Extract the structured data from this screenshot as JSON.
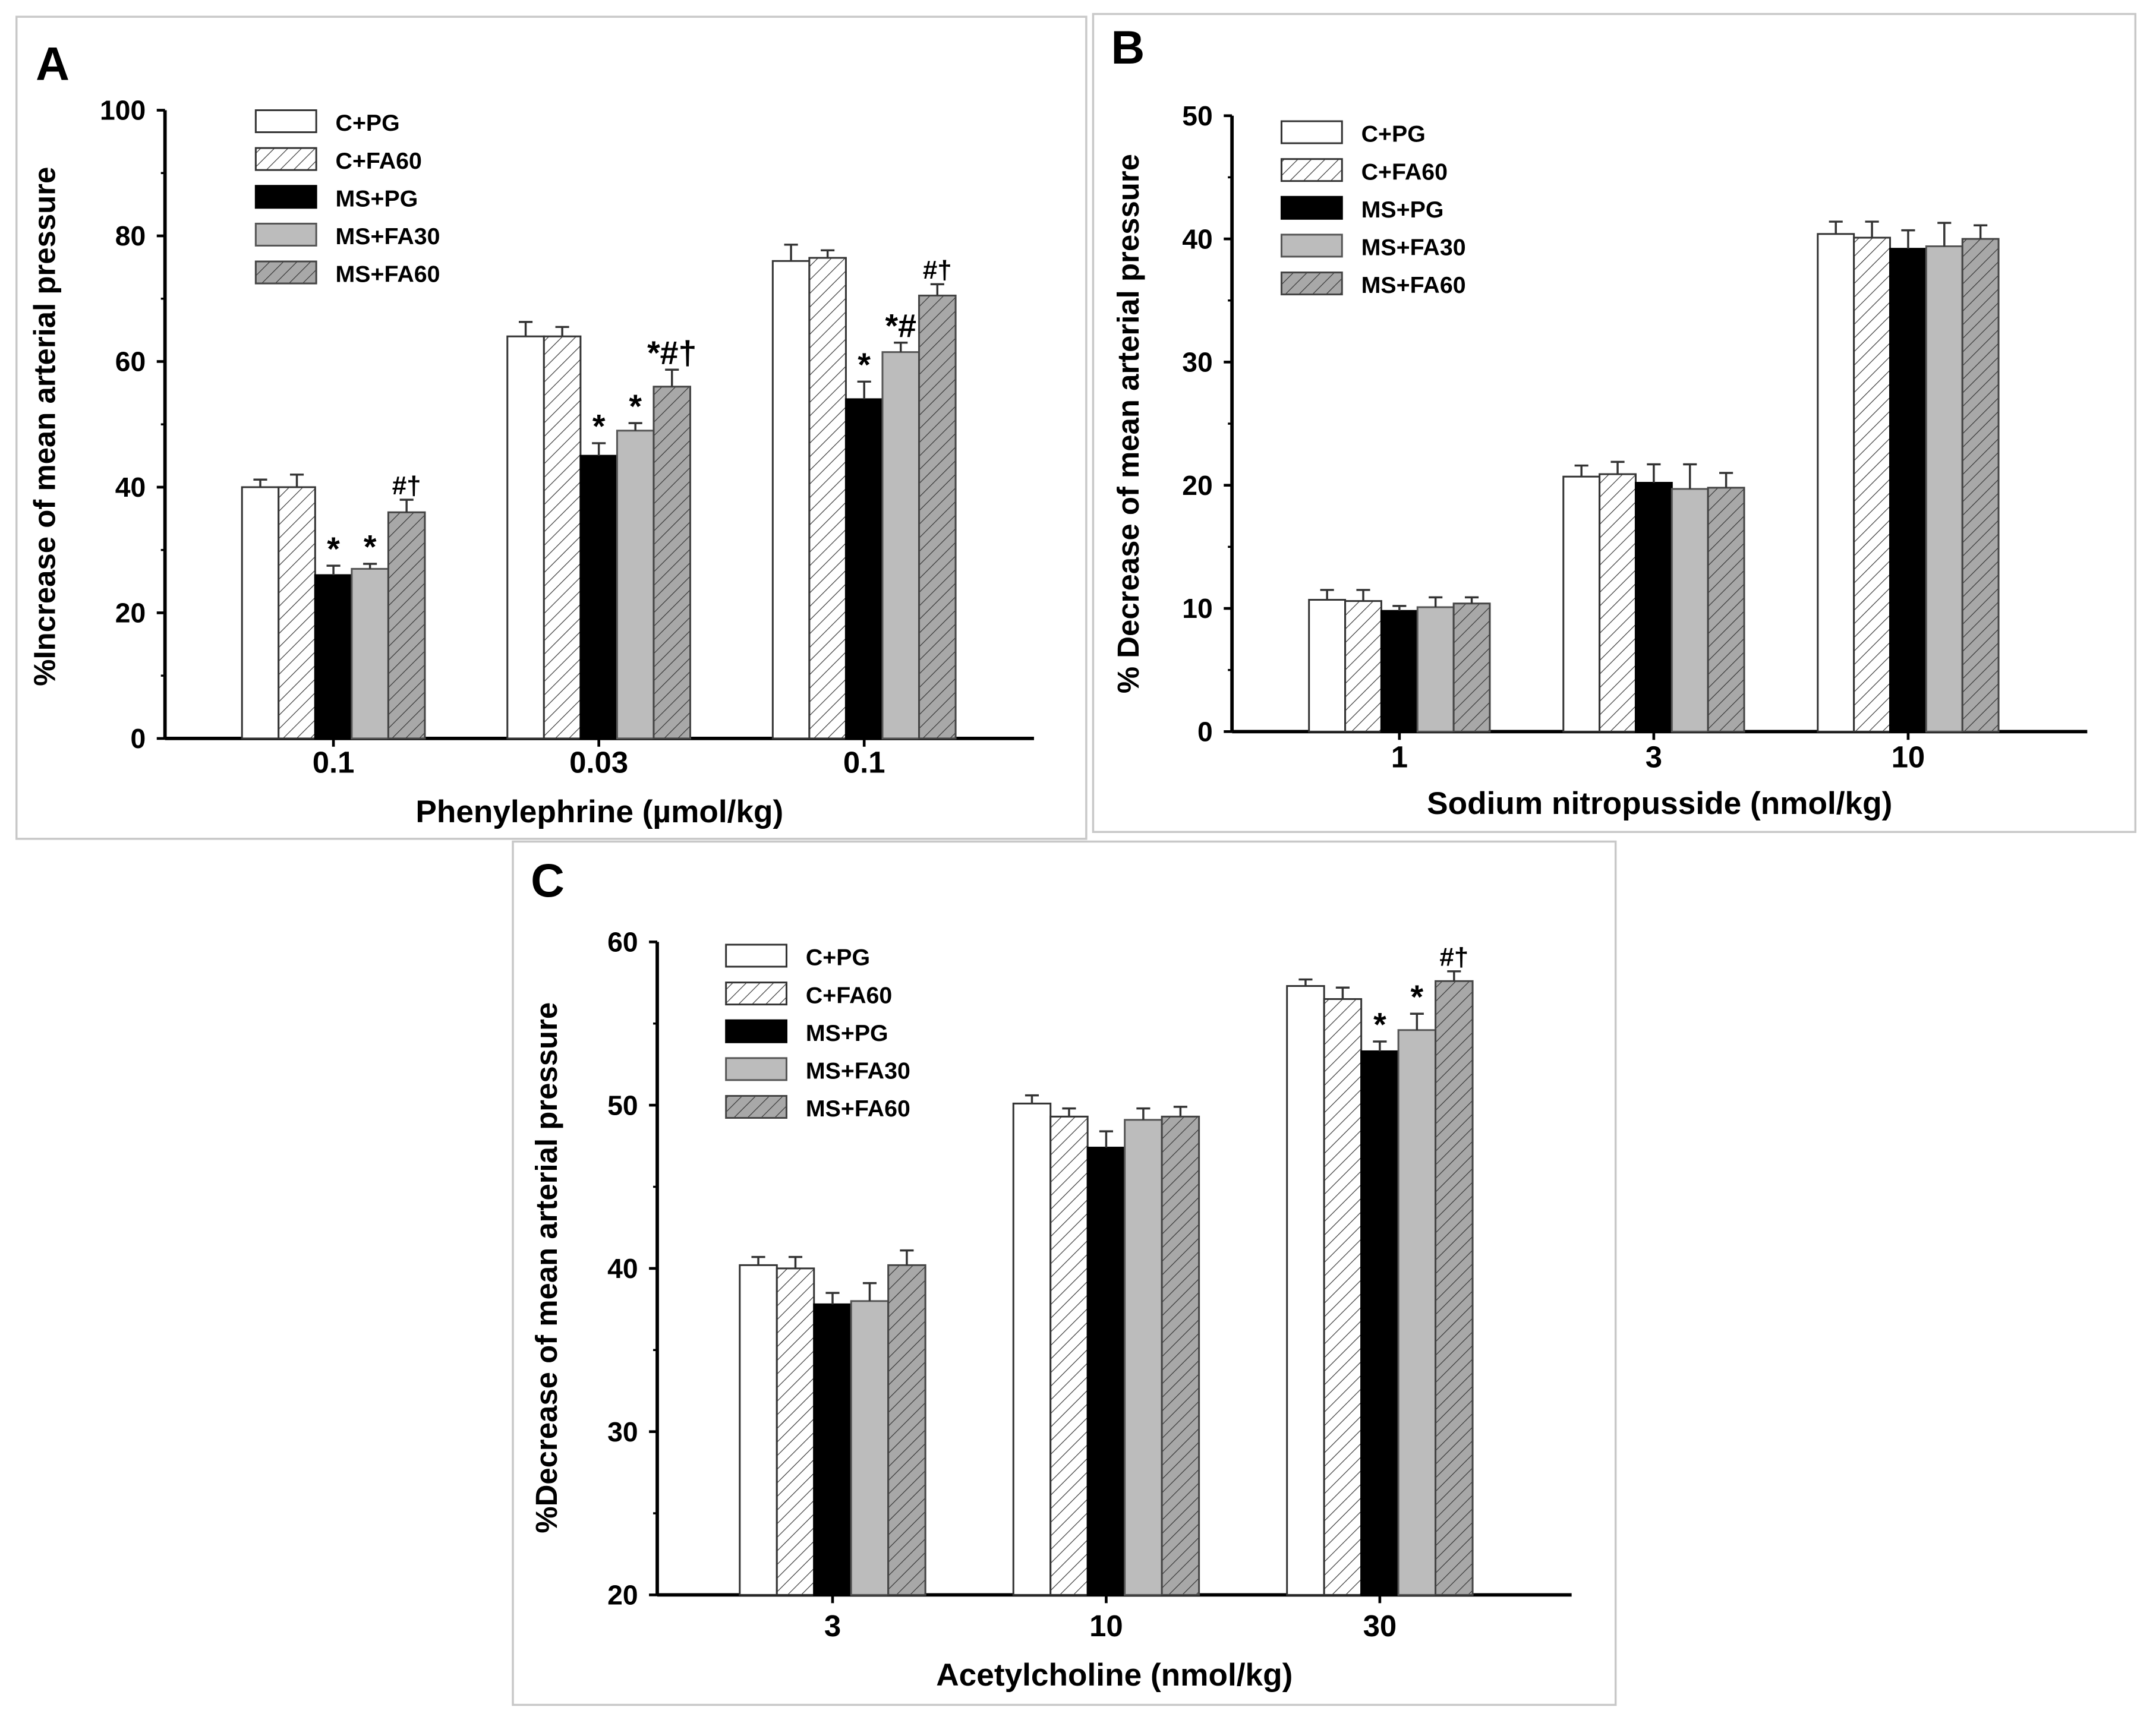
{
  "legend": [
    "C+PG",
    "C+FA60",
    "MS+PG",
    "MS+FA30",
    "MS+FA60"
  ],
  "colors": {
    "white": "#ffffff",
    "black": "#000000",
    "gray": "#bcbcbc",
    "gray_hatch": "#a8a8a8"
  },
  "chart_data": [
    {
      "type": "bar",
      "panel": "A",
      "title": "",
      "xlabel": "Phenylephrine (µmol/kg)",
      "ylabel": "%Increase of mean arterial pressure",
      "ylim": [
        0,
        100
      ],
      "yticks": [
        "0",
        "20",
        "40",
        "60",
        "80",
        "100"
      ],
      "categories": [
        "0.1",
        "0.03",
        "0.1"
      ],
      "legend_position": "top-left",
      "series": [
        {
          "name": "C+PG",
          "values": [
            40,
            64,
            76
          ],
          "errors": [
            1.2,
            2.3,
            2.6
          ],
          "annotations": [
            "",
            "",
            ""
          ]
        },
        {
          "name": "C+FA60",
          "values": [
            40,
            64,
            76.5
          ],
          "errors": [
            2,
            1.5,
            1.2
          ],
          "annotations": [
            "",
            "",
            ""
          ]
        },
        {
          "name": "MS+PG",
          "values": [
            26,
            45,
            54
          ],
          "errors": [
            1.5,
            2,
            2.8
          ],
          "annotations": [
            "*",
            "*",
            "*"
          ]
        },
        {
          "name": "MS+FA30",
          "values": [
            27,
            49,
            61.5
          ],
          "errors": [
            0.8,
            1.2,
            1.5
          ],
          "annotations": [
            "*",
            "*",
            "*#"
          ]
        },
        {
          "name": "MS+FA60",
          "values": [
            36,
            56,
            70.5
          ],
          "errors": [
            2,
            2.7,
            1.8
          ],
          "annotations": [
            "#†",
            "*#†",
            "#†"
          ]
        }
      ]
    },
    {
      "type": "bar",
      "panel": "B",
      "title": "",
      "xlabel": "Sodium nitropusside (nmol/kg)",
      "ylabel": "% Decrease of mean arterial pressure",
      "ylim": [
        0,
        50
      ],
      "yticks": [
        "0",
        "10",
        "20",
        "30",
        "40",
        "50"
      ],
      "categories": [
        "1",
        "3",
        "10"
      ],
      "legend_position": "top-left",
      "series": [
        {
          "name": "C+PG",
          "values": [
            10.7,
            20.7,
            40.4
          ],
          "errors": [
            0.8,
            0.9,
            1
          ],
          "annotations": [
            "",
            "",
            ""
          ]
        },
        {
          "name": "C+FA60",
          "values": [
            10.6,
            20.9,
            40.1
          ],
          "errors": [
            0.9,
            1,
            1.3
          ],
          "annotations": [
            "",
            "",
            ""
          ]
        },
        {
          "name": "MS+PG",
          "values": [
            9.8,
            20.2,
            39.2
          ],
          "errors": [
            0.4,
            1.5,
            1.5
          ],
          "annotations": [
            "",
            "",
            ""
          ]
        },
        {
          "name": "MS+FA30",
          "values": [
            10.1,
            19.7,
            39.4
          ],
          "errors": [
            0.8,
            2,
            1.9
          ],
          "annotations": [
            "",
            "",
            ""
          ]
        },
        {
          "name": "MS+FA60",
          "values": [
            10.4,
            19.8,
            40
          ],
          "errors": [
            0.5,
            1.2,
            1.1
          ],
          "annotations": [
            "",
            "",
            ""
          ]
        }
      ]
    },
    {
      "type": "bar",
      "panel": "C",
      "title": "",
      "xlabel": "Acetylcholine (nmol/kg)",
      "ylabel": "%Decrease of mean arterial pressure",
      "ylim": [
        20,
        60
      ],
      "yticks": [
        "20",
        "30",
        "40",
        "50",
        "60"
      ],
      "categories": [
        "3",
        "10",
        "30"
      ],
      "legend_position": "top-left",
      "series": [
        {
          "name": "C+PG",
          "values": [
            40.2,
            50.1,
            57.3
          ],
          "errors": [
            0.5,
            0.5,
            0.4
          ],
          "annotations": [
            "",
            "",
            ""
          ]
        },
        {
          "name": "C+FA60",
          "values": [
            40,
            49.3,
            56.5
          ],
          "errors": [
            0.7,
            0.5,
            0.7
          ],
          "annotations": [
            "",
            "",
            ""
          ]
        },
        {
          "name": "MS+PG",
          "values": [
            37.8,
            47.4,
            53.3
          ],
          "errors": [
            0.7,
            1,
            0.6
          ],
          "annotations": [
            "",
            "",
            "*"
          ]
        },
        {
          "name": "MS+FA30",
          "values": [
            38,
            49.1,
            54.6
          ],
          "errors": [
            1.1,
            0.7,
            1
          ],
          "annotations": [
            "",
            "",
            "*"
          ]
        },
        {
          "name": "MS+FA60",
          "values": [
            40.2,
            49.3,
            57.6
          ],
          "errors": [
            0.9,
            0.6,
            0.6
          ],
          "annotations": [
            "",
            "",
            "#†"
          ]
        }
      ]
    }
  ]
}
